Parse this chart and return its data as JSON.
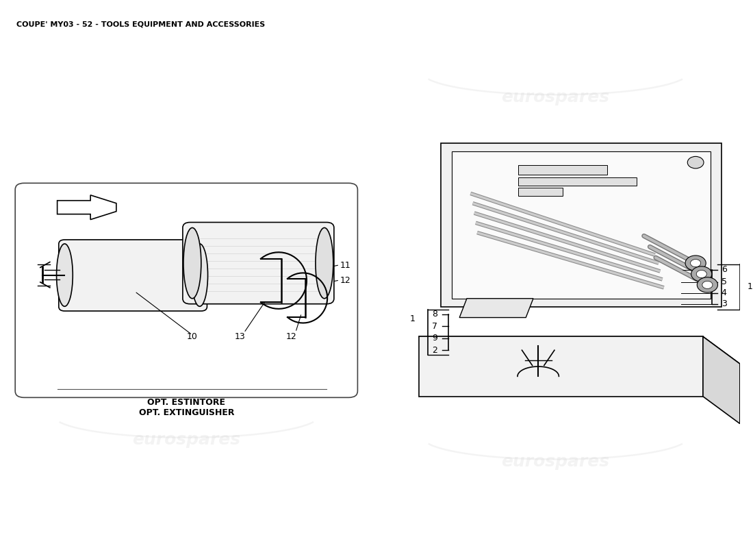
{
  "title": "COUPE' MY03 - 52 - TOOLS EQUIPMENT AND ACCESSORIES",
  "title_fontsize": 8,
  "title_color": "#000000",
  "bg_color": "#ffffff",
  "watermark_color": "#cccccc",
  "watermark_text": "eurospares",
  "left_panel_label": "OPT. ESTINTORE\nOPT. EXTINGUISHER",
  "font_size_labels": 9,
  "line_color": "#000000",
  "box_edge_color": "#555555"
}
